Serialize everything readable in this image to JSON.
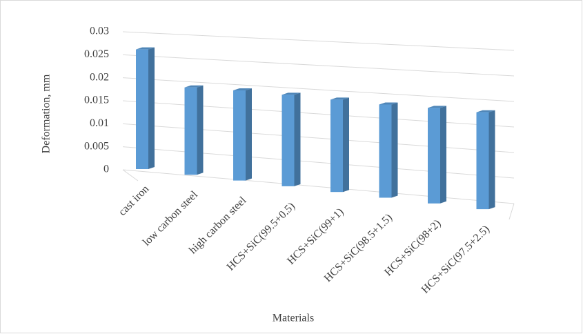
{
  "chart_data": {
    "type": "bar3d",
    "x_label": "Materials",
    "y_label": "Deformation, mm",
    "categories": [
      "cast iron",
      "low carbon steel",
      "high carbon steel",
      "HCS+SiC(99.5+0.5)",
      "HCS+SiC(99+1)",
      "HCS+SiC(98.5+1.5)",
      "HCS+SiC(98+2)",
      "HCS+SiC(97.5+2.5)"
    ],
    "values": [
      0.026,
      0.0187,
      0.019,
      0.019,
      0.0189,
      0.0188,
      0.019,
      0.019
    ],
    "color": "#5b9bd5",
    "ylim": [
      0,
      0.03
    ],
    "yticks": [
      0,
      0.005,
      0.01,
      0.015,
      0.02,
      0.025,
      0.03
    ],
    "grid": true
  }
}
